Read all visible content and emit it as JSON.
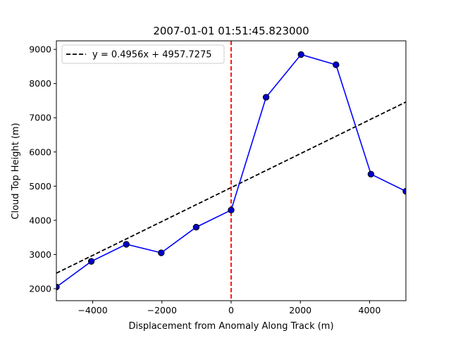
{
  "chart_data": {
    "type": "line",
    "title": "2007-01-01 01:51:45.823000",
    "xlabel": "Displacement from Anomaly Along Track (m)",
    "ylabel": "Cloud Top Height (m)",
    "xlim": [
      -5050,
      5050
    ],
    "ylim": [
      1650,
      9250
    ],
    "xticks": [
      -4000,
      -2000,
      0,
      2000,
      4000
    ],
    "xtick_labels": [
      "−4000",
      "−2000",
      "0",
      "2000",
      "4000"
    ],
    "yticks": [
      2000,
      3000,
      4000,
      5000,
      6000,
      7000,
      8000,
      9000
    ],
    "ytick_labels": [
      "2000",
      "3000",
      "4000",
      "5000",
      "6000",
      "7000",
      "8000",
      "9000"
    ],
    "grid": false,
    "legend_position": "upper-left",
    "series": [
      {
        "kind": "line-markers",
        "color": "#0000ff",
        "marker_color": "#0000cc",
        "x": [
          -5050,
          -4040,
          -3030,
          -2020,
          -1010,
          0,
          1010,
          2020,
          3030,
          4040,
          5050
        ],
        "y": [
          2050,
          2800,
          3300,
          3050,
          3800,
          4300,
          7600,
          8850,
          8550,
          5350,
          4850
        ]
      },
      {
        "kind": "fit-line",
        "name": "y = 0.4956x + 4957.7275",
        "color": "#000000",
        "dash": true,
        "slope": 0.4956,
        "intercept": 4957.7275
      },
      {
        "kind": "vertical-line",
        "color": "#ff0000",
        "dash": true,
        "x": 0
      }
    ]
  }
}
